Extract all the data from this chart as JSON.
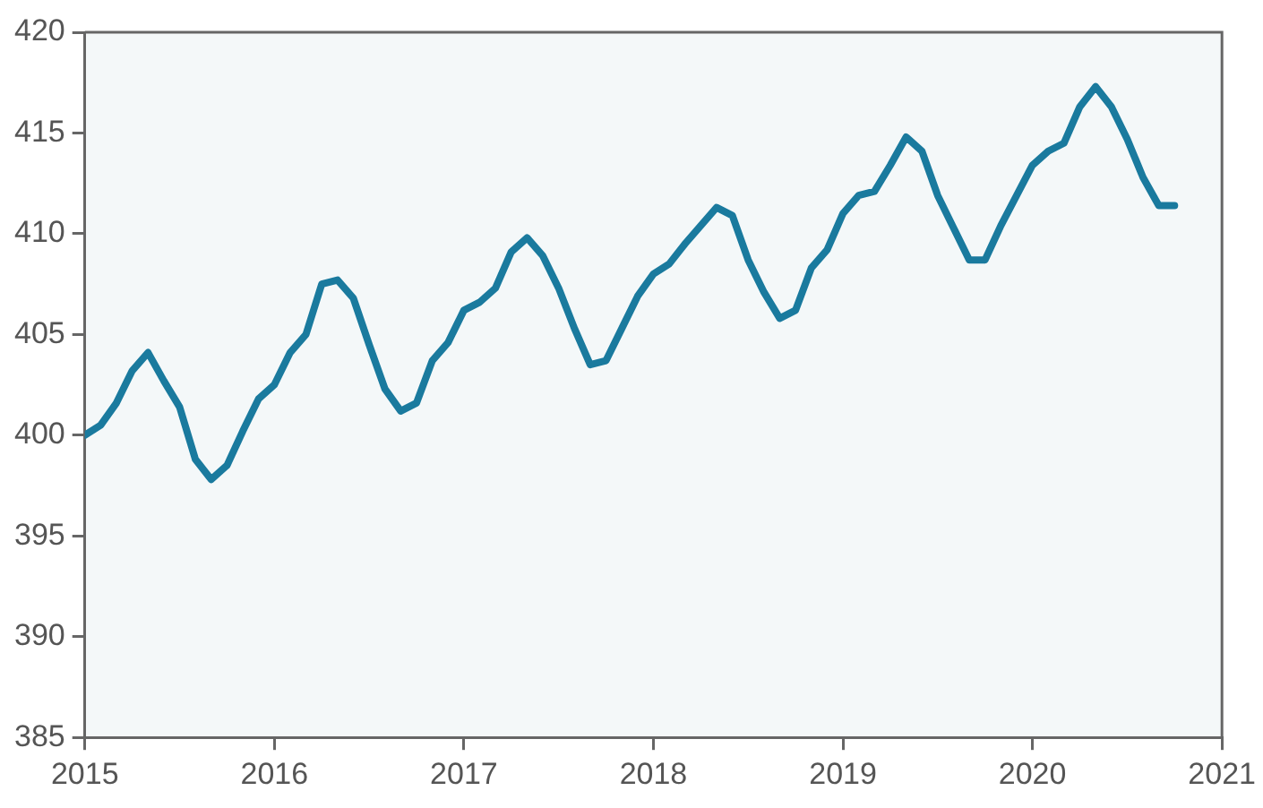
{
  "chart_data": {
    "type": "line",
    "x": [
      "2015-01",
      "2015-02",
      "2015-03",
      "2015-04",
      "2015-05",
      "2015-06",
      "2015-07",
      "2015-08",
      "2015-09",
      "2015-10",
      "2015-11",
      "2015-12",
      "2016-01",
      "2016-02",
      "2016-03",
      "2016-04",
      "2016-05",
      "2016-06",
      "2016-07",
      "2016-08",
      "2016-09",
      "2016-10",
      "2016-11",
      "2016-12",
      "2017-01",
      "2017-02",
      "2017-03",
      "2017-04",
      "2017-05",
      "2017-06",
      "2017-07",
      "2017-08",
      "2017-09",
      "2017-10",
      "2017-11",
      "2017-12",
      "2018-01",
      "2018-02",
      "2018-03",
      "2018-04",
      "2018-05",
      "2018-06",
      "2018-07",
      "2018-08",
      "2018-09",
      "2018-10",
      "2018-11",
      "2018-12",
      "2019-01",
      "2019-02",
      "2019-03",
      "2019-04",
      "2019-05",
      "2019-06",
      "2019-07",
      "2019-08",
      "2019-09",
      "2019-10",
      "2019-11",
      "2019-12",
      "2020-01",
      "2020-02",
      "2020-03",
      "2020-04",
      "2020-05",
      "2020-06",
      "2020-07",
      "2020-08",
      "2020-09",
      "2020-10"
    ],
    "series": [
      {
        "color": "#1a7a9e",
        "values": [
          400.0,
          400.5,
          401.6,
          403.2,
          404.1,
          402.7,
          401.4,
          398.8,
          397.8,
          398.5,
          400.2,
          401.8,
          402.5,
          404.1,
          405.0,
          407.5,
          407.7,
          406.8,
          404.5,
          402.3,
          401.2,
          401.6,
          403.7,
          404.6,
          406.2,
          406.6,
          407.3,
          409.1,
          409.8,
          408.9,
          407.3,
          405.3,
          403.5,
          403.7,
          405.3,
          406.9,
          408.0,
          408.5,
          409.5,
          410.4,
          411.3,
          410.9,
          408.7,
          407.1,
          405.8,
          406.2,
          408.3,
          409.2,
          411.0,
          411.9,
          412.1,
          413.4,
          414.8,
          414.1,
          411.9,
          410.3,
          408.7,
          408.7,
          410.4,
          411.9,
          413.4,
          414.1,
          414.5,
          416.3,
          417.3,
          416.3,
          414.7,
          412.8,
          411.4,
          411.4
        ]
      }
    ],
    "xlim": [
      "2015",
      "2021"
    ],
    "xticks": [
      "2015",
      "2016",
      "2017",
      "2018",
      "2019",
      "2020",
      "2021"
    ],
    "ylim": [
      385,
      420
    ],
    "yticks": [
      385,
      390,
      395,
      400,
      405,
      410,
      415,
      420
    ],
    "grid": false,
    "legend": false,
    "marker": "none",
    "line_style": "solid"
  }
}
